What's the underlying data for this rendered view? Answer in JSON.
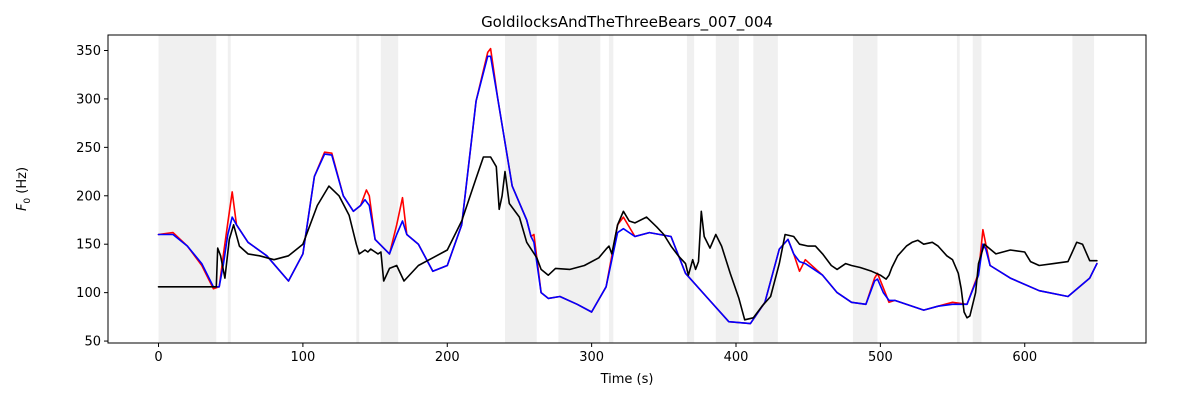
{
  "chart_data": {
    "type": "line",
    "title": "GoldilocksAndTheThreeBears_007_004",
    "xlabel": "Time (s)",
    "ylabel_main": "F",
    "ylabel_sub": "0",
    "ylabel_unit": " (Hz)",
    "xlim": [
      -35,
      684
    ],
    "ylim": [
      48,
      366
    ],
    "xticks": [
      0,
      100,
      200,
      300,
      400,
      500,
      600
    ],
    "yticks": [
      50,
      100,
      150,
      200,
      250,
      300,
      350
    ],
    "grid": false,
    "shaded_spans": [
      [
        0,
        40
      ],
      [
        48,
        50
      ],
      [
        137,
        139
      ],
      [
        154,
        166
      ],
      [
        240,
        262
      ],
      [
        277,
        306
      ],
      [
        312,
        315
      ],
      [
        366,
        371
      ],
      [
        386,
        402
      ],
      [
        412,
        429
      ],
      [
        481,
        498
      ],
      [
        553,
        555
      ],
      [
        564,
        570
      ],
      [
        633,
        648
      ]
    ],
    "series": [
      {
        "color": "#ff0000",
        "points": [
          [
            0,
            160
          ],
          [
            10,
            162
          ],
          [
            20,
            148
          ],
          [
            30,
            128
          ],
          [
            38,
            104
          ],
          [
            42,
            106
          ],
          [
            45,
            140
          ],
          [
            48,
            172
          ],
          [
            51,
            204
          ],
          [
            54,
            170
          ],
          [
            62,
            152
          ],
          [
            75,
            138
          ],
          [
            90,
            112
          ],
          [
            100,
            140
          ],
          [
            108,
            220
          ],
          [
            115,
            245
          ],
          [
            120,
            244
          ],
          [
            128,
            200
          ],
          [
            135,
            184
          ],
          [
            140,
            190
          ],
          [
            144,
            206
          ],
          [
            146,
            200
          ],
          [
            150,
            155
          ],
          [
            160,
            140
          ],
          [
            165,
            170
          ],
          [
            169,
            198
          ],
          [
            172,
            160
          ],
          [
            180,
            150
          ],
          [
            190,
            122
          ],
          [
            200,
            128
          ],
          [
            210,
            170
          ],
          [
            220,
            298
          ],
          [
            228,
            348
          ],
          [
            230,
            352
          ],
          [
            235,
            300
          ],
          [
            245,
            210
          ],
          [
            255,
            175
          ],
          [
            258,
            158
          ],
          [
            260,
            160
          ],
          [
            265,
            100
          ],
          [
            270,
            94
          ],
          [
            278,
            96
          ],
          [
            290,
            88
          ],
          [
            300,
            80
          ],
          [
            310,
            106
          ],
          [
            318,
            170
          ],
          [
            322,
            178
          ],
          [
            330,
            158
          ],
          [
            340,
            162
          ],
          [
            355,
            158
          ],
          [
            365,
            120
          ],
          [
            380,
            95
          ],
          [
            395,
            70
          ],
          [
            410,
            68
          ],
          [
            420,
            90
          ],
          [
            430,
            145
          ],
          [
            436,
            155
          ],
          [
            440,
            140
          ],
          [
            444,
            122
          ],
          [
            448,
            134
          ],
          [
            460,
            118
          ],
          [
            470,
            100
          ],
          [
            480,
            90
          ],
          [
            490,
            88
          ],
          [
            496,
            115
          ],
          [
            498,
            120
          ],
          [
            502,
            105
          ],
          [
            506,
            90
          ],
          [
            510,
            92
          ],
          [
            530,
            82
          ],
          [
            540,
            86
          ],
          [
            550,
            90
          ],
          [
            560,
            88
          ],
          [
            568,
            120
          ],
          [
            571,
            165
          ],
          [
            573,
            150
          ],
          [
            576,
            128
          ],
          [
            590,
            115
          ],
          [
            610,
            102
          ],
          [
            630,
            96
          ],
          [
            645,
            115
          ],
          [
            650,
            130
          ]
        ]
      },
      {
        "color": "#0000ff",
        "points": [
          [
            0,
            160
          ],
          [
            10,
            160
          ],
          [
            20,
            148
          ],
          [
            30,
            130
          ],
          [
            38,
            106
          ],
          [
            42,
            106
          ],
          [
            45,
            130
          ],
          [
            48,
            160
          ],
          [
            51,
            178
          ],
          [
            54,
            170
          ],
          [
            62,
            152
          ],
          [
            75,
            138
          ],
          [
            90,
            112
          ],
          [
            100,
            140
          ],
          [
            108,
            220
          ],
          [
            115,
            243
          ],
          [
            120,
            242
          ],
          [
            128,
            200
          ],
          [
            135,
            184
          ],
          [
            140,
            190
          ],
          [
            143,
            196
          ],
          [
            146,
            190
          ],
          [
            150,
            155
          ],
          [
            160,
            140
          ],
          [
            165,
            160
          ],
          [
            169,
            174
          ],
          [
            172,
            160
          ],
          [
            180,
            150
          ],
          [
            190,
            122
          ],
          [
            200,
            128
          ],
          [
            210,
            170
          ],
          [
            220,
            298
          ],
          [
            228,
            344
          ],
          [
            230,
            344
          ],
          [
            235,
            300
          ],
          [
            245,
            210
          ],
          [
            255,
            175
          ],
          [
            258,
            158
          ],
          [
            260,
            152
          ],
          [
            265,
            100
          ],
          [
            270,
            94
          ],
          [
            278,
            96
          ],
          [
            290,
            88
          ],
          [
            300,
            80
          ],
          [
            310,
            106
          ],
          [
            318,
            162
          ],
          [
            322,
            166
          ],
          [
            330,
            158
          ],
          [
            340,
            162
          ],
          [
            355,
            158
          ],
          [
            365,
            120
          ],
          [
            380,
            95
          ],
          [
            395,
            70
          ],
          [
            410,
            68
          ],
          [
            420,
            90
          ],
          [
            430,
            145
          ],
          [
            436,
            155
          ],
          [
            440,
            140
          ],
          [
            444,
            132
          ],
          [
            448,
            130
          ],
          [
            460,
            118
          ],
          [
            470,
            100
          ],
          [
            480,
            90
          ],
          [
            490,
            88
          ],
          [
            496,
            112
          ],
          [
            498,
            114
          ],
          [
            502,
            100
          ],
          [
            506,
            92
          ],
          [
            510,
            92
          ],
          [
            530,
            82
          ],
          [
            540,
            86
          ],
          [
            550,
            88
          ],
          [
            560,
            88
          ],
          [
            568,
            118
          ],
          [
            571,
            150
          ],
          [
            573,
            145
          ],
          [
            576,
            128
          ],
          [
            590,
            115
          ],
          [
            610,
            102
          ],
          [
            630,
            96
          ],
          [
            645,
            115
          ],
          [
            650,
            130
          ]
        ]
      },
      {
        "color": "#000000",
        "points": [
          [
            0,
            106
          ],
          [
            40,
            106
          ],
          [
            41,
            146
          ],
          [
            43,
            138
          ],
          [
            46,
            115
          ],
          [
            49,
            155
          ],
          [
            52,
            170
          ],
          [
            56,
            148
          ],
          [
            62,
            140
          ],
          [
            70,
            138
          ],
          [
            80,
            134
          ],
          [
            90,
            138
          ],
          [
            100,
            150
          ],
          [
            110,
            190
          ],
          [
            118,
            210
          ],
          [
            125,
            200
          ],
          [
            132,
            180
          ],
          [
            137,
            150
          ],
          [
            139,
            140
          ],
          [
            141,
            142
          ],
          [
            143,
            144
          ],
          [
            145,
            142
          ],
          [
            147,
            145
          ],
          [
            150,
            142
          ],
          [
            152,
            140
          ],
          [
            154,
            142
          ],
          [
            156,
            112
          ],
          [
            160,
            125
          ],
          [
            165,
            128
          ],
          [
            170,
            112
          ],
          [
            180,
            128
          ],
          [
            190,
            136
          ],
          [
            200,
            144
          ],
          [
            210,
            174
          ],
          [
            220,
            218
          ],
          [
            225,
            240
          ],
          [
            230,
            240
          ],
          [
            234,
            230
          ],
          [
            236,
            186
          ],
          [
            238,
            200
          ],
          [
            240,
            225
          ],
          [
            243,
            192
          ],
          [
            250,
            178
          ],
          [
            255,
            152
          ],
          [
            262,
            136
          ],
          [
            265,
            124
          ],
          [
            270,
            118
          ],
          [
            275,
            125
          ],
          [
            285,
            124
          ],
          [
            295,
            128
          ],
          [
            305,
            136
          ],
          [
            310,
            145
          ],
          [
            312,
            148
          ],
          [
            314,
            140
          ],
          [
            318,
            170
          ],
          [
            322,
            184
          ],
          [
            326,
            174
          ],
          [
            330,
            172
          ],
          [
            338,
            178
          ],
          [
            345,
            168
          ],
          [
            350,
            160
          ],
          [
            355,
            148
          ],
          [
            360,
            138
          ],
          [
            365,
            130
          ],
          [
            367,
            118
          ],
          [
            370,
            134
          ],
          [
            372,
            124
          ],
          [
            374,
            132
          ],
          [
            376,
            184
          ],
          [
            378,
            158
          ],
          [
            382,
            146
          ],
          [
            386,
            160
          ],
          [
            390,
            148
          ],
          [
            396,
            120
          ],
          [
            402,
            94
          ],
          [
            406,
            72
          ],
          [
            412,
            74
          ],
          [
            418,
            86
          ],
          [
            424,
            96
          ],
          [
            430,
            130
          ],
          [
            434,
            160
          ],
          [
            440,
            158
          ],
          [
            444,
            150
          ],
          [
            450,
            148
          ],
          [
            455,
            148
          ],
          [
            460,
            140
          ],
          [
            466,
            128
          ],
          [
            470,
            124
          ],
          [
            476,
            130
          ],
          [
            480,
            128
          ],
          [
            486,
            126
          ],
          [
            494,
            122
          ],
          [
            500,
            118
          ],
          [
            504,
            114
          ],
          [
            506,
            118
          ],
          [
            508,
            126
          ],
          [
            512,
            138
          ],
          [
            518,
            148
          ],
          [
            522,
            152
          ],
          [
            526,
            154
          ],
          [
            530,
            150
          ],
          [
            536,
            152
          ],
          [
            540,
            148
          ],
          [
            546,
            138
          ],
          [
            550,
            134
          ],
          [
            554,
            120
          ],
          [
            556,
            104
          ],
          [
            558,
            80
          ],
          [
            560,
            74
          ],
          [
            562,
            76
          ],
          [
            566,
            100
          ],
          [
            568,
            130
          ],
          [
            572,
            150
          ],
          [
            580,
            140
          ],
          [
            590,
            144
          ],
          [
            600,
            142
          ],
          [
            604,
            132
          ],
          [
            610,
            128
          ],
          [
            620,
            130
          ],
          [
            630,
            132
          ],
          [
            636,
            152
          ],
          [
            640,
            150
          ],
          [
            645,
            133
          ],
          [
            650,
            133
          ]
        ]
      }
    ]
  }
}
